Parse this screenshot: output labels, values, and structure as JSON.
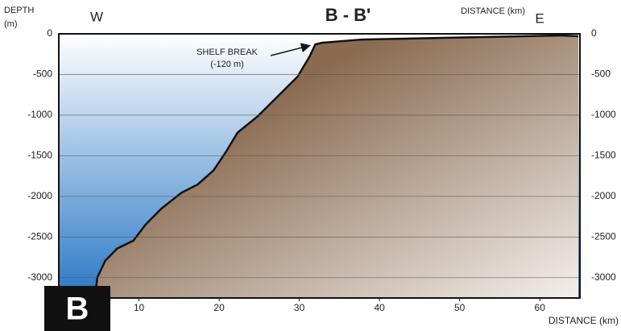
{
  "chart_data": {
    "type": "area",
    "title": "B - B'",
    "west_label": "W",
    "east_label": "E",
    "y_label": [
      "DEPTH",
      "(m)"
    ],
    "x_label": "DISTANCE (km)",
    "panel_label": "B",
    "annotation": [
      "SHELF BREAK",
      "(-120 m)"
    ],
    "x": [
      4.5,
      4.8,
      5.8,
      7.3,
      9.3,
      10.8,
      12.8,
      15.3,
      17.3,
      19.3,
      20.8,
      22.3,
      24.8,
      27.3,
      29.8,
      31.3,
      32,
      32.8,
      37.8,
      47.8,
      62.8,
      64.8
    ],
    "values": [
      -3250,
      -3000,
      -2790,
      -2640,
      -2545,
      -2350,
      -2150,
      -1955,
      -1855,
      -1680,
      -1460,
      -1215,
      -1015,
      -770,
      -525,
      -275,
      -130,
      -110,
      -70,
      -50,
      -20,
      -30
    ],
    "xlim": [
      0,
      65
    ],
    "ylim": [
      -3250,
      0
    ],
    "xticks": [
      10,
      20,
      30,
      40,
      50,
      60
    ],
    "yticks": [
      0,
      -500,
      -1000,
      -1500,
      -2000,
      -2500,
      -3000
    ],
    "grid": true,
    "water_color": "#2a78c6",
    "seafloor_color": "#8a6b52"
  }
}
